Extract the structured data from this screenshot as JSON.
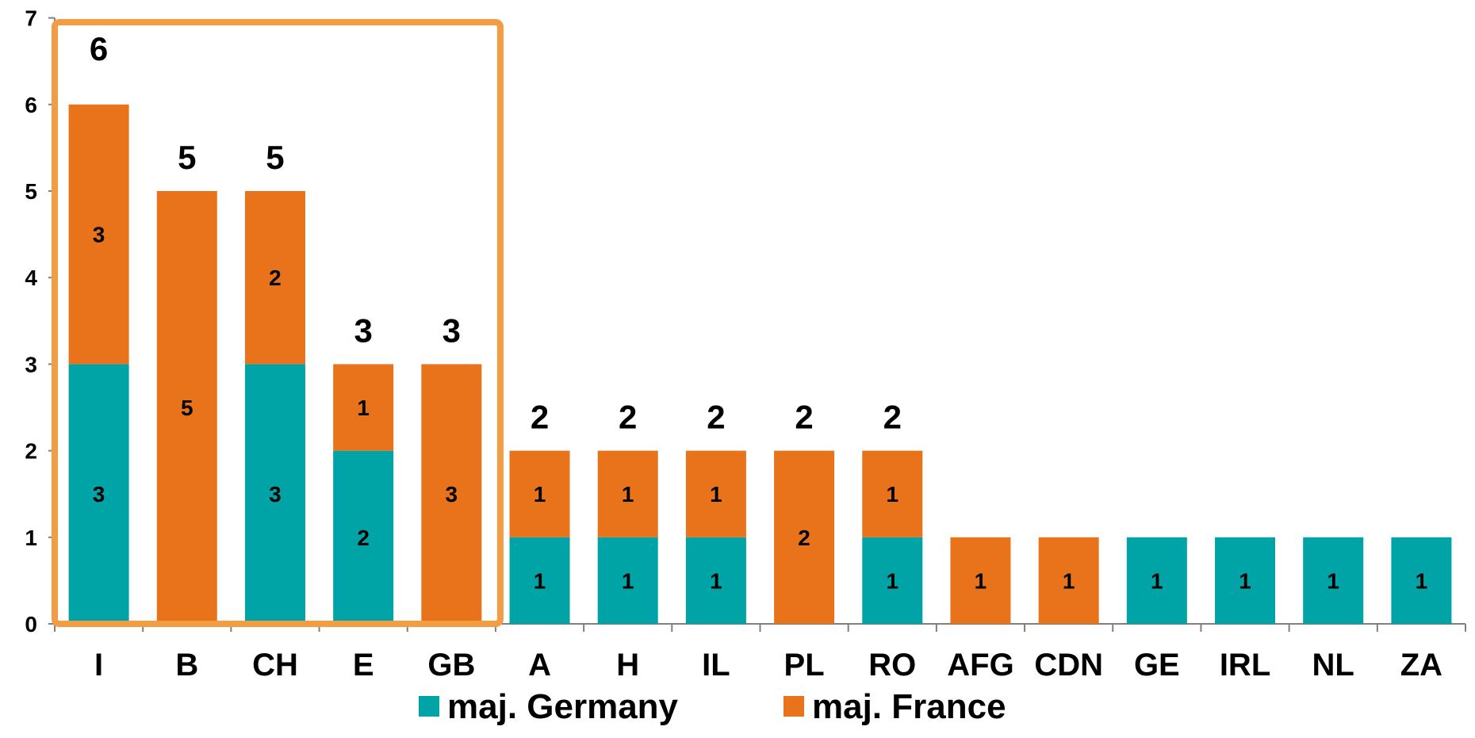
{
  "chart_data": {
    "type": "bar",
    "stacked": true,
    "categories": [
      "I",
      "B",
      "CH",
      "E",
      "GB",
      "A",
      "H",
      "IL",
      "PL",
      "RO",
      "AFG",
      "CDN",
      "GE",
      "IRL",
      "NL",
      "ZA"
    ],
    "series": [
      {
        "name": "maj. Germany",
        "color": "#00a3a6",
        "values": [
          3,
          0,
          3,
          2,
          0,
          1,
          1,
          1,
          0,
          1,
          0,
          0,
          1,
          1,
          1,
          1
        ]
      },
      {
        "name": "maj. France",
        "color": "#e8731b",
        "values": [
          3,
          5,
          2,
          1,
          3,
          1,
          1,
          1,
          2,
          1,
          1,
          1,
          0,
          0,
          0,
          0
        ]
      }
    ],
    "totals": [
      6,
      5,
      5,
      3,
      3,
      2,
      2,
      2,
      2,
      2,
      1,
      1,
      1,
      1,
      1,
      1
    ],
    "show_totals_for": [
      "I",
      "B",
      "CH",
      "E",
      "GB",
      "A",
      "H",
      "IL",
      "PL",
      "RO"
    ],
    "y_ticks": [
      "0",
      "1",
      "2",
      "3",
      "4",
      "5",
      "6",
      "7"
    ],
    "ylim": [
      0,
      7
    ],
    "grid": false,
    "legend_position": "bottom-center",
    "highlight": {
      "categories": [
        "I",
        "B",
        "CH",
        "E",
        "GB"
      ],
      "color": "#f39c43"
    }
  }
}
